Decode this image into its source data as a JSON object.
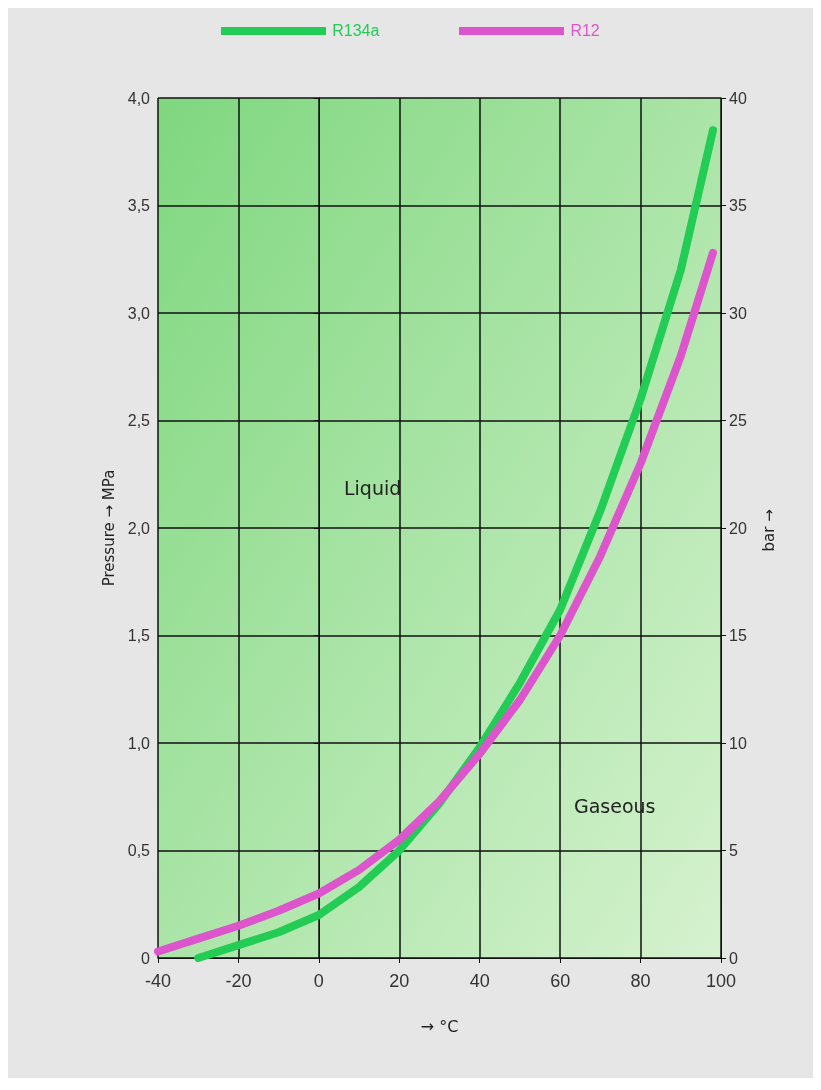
{
  "chart_data": {
    "type": "line",
    "xlabel": "→ °C",
    "ylabel": "Pressure → MPa",
    "y2label": "bar → ",
    "annotations": [
      "Liquid",
      "Gaseous"
    ],
    "xlim": [
      -40,
      100
    ],
    "xticks": [
      -40,
      -20,
      0,
      20,
      40,
      60,
      80,
      100
    ],
    "ylim": [
      0,
      4
    ],
    "yticks": [
      0,
      {
        "value": 0.5,
        "label": "0,5"
      },
      {
        "value": 1,
        "label": "1,0"
      },
      {
        "value": 1.5,
        "label": "1,5"
      },
      {
        "value": 2,
        "label": "2,0"
      },
      {
        "value": 2.5,
        "label": "2,5"
      },
      {
        "value": 3,
        "label": "3,0"
      },
      {
        "value": 3.5,
        "label": "3,5"
      },
      {
        "value": 4,
        "label": "4,0"
      }
    ],
    "y2lim": [
      0,
      40
    ],
    "y2ticks": [
      0,
      5,
      10,
      15,
      20,
      25,
      30,
      35,
      40
    ],
    "grid": true,
    "legend": "top",
    "marker": "none",
    "line_style": "solid",
    "series": [
      {
        "name": "R134a",
        "color": "#22cc55",
        "x": [
          -30,
          -20,
          -10,
          0,
          10,
          20,
          30,
          40,
          50,
          60,
          70,
          80,
          90,
          98
        ],
        "values": [
          0,
          0.06,
          0.12,
          0.2,
          0.33,
          0.5,
          0.72,
          0.98,
          1.28,
          1.62,
          2.08,
          2.6,
          3.2,
          3.85
        ]
      },
      {
        "name": "R12",
        "color": "#dd55cc",
        "x": [
          -40,
          -30,
          -20,
          -10,
          0,
          10,
          20,
          30,
          40,
          50,
          60,
          70,
          80,
          90,
          98
        ],
        "values": [
          0.03,
          0.09,
          0.15,
          0.22,
          0.3,
          0.41,
          0.55,
          0.73,
          0.95,
          1.2,
          1.5,
          1.87,
          2.3,
          2.8,
          3.28
        ]
      }
    ]
  }
}
